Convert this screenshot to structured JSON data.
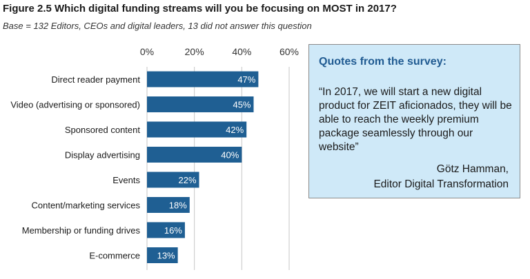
{
  "chart_data": {
    "type": "bar",
    "orientation": "horizontal",
    "title": "Figure 2.5 Which digital funding streams will you be focusing on MOST in 2017?",
    "subtitle": "Base = 132 Editors, CEOs and digital leaders, 13 did not answer this question",
    "categories": [
      "Direct reader payment",
      "Video (advertising or sponsored)",
      "Sponsored content",
      "Display advertising",
      "Events",
      "Content/marketing services",
      "Membership or funding drives",
      "E-commerce"
    ],
    "values": [
      47,
      45,
      42,
      40,
      22,
      18,
      16,
      13
    ],
    "value_labels": [
      "47%",
      "45%",
      "42%",
      "40%",
      "22%",
      "18%",
      "16%",
      "13%"
    ],
    "xlim": [
      0,
      60
    ],
    "ticks": [
      0,
      20,
      40,
      60
    ],
    "tick_labels": [
      "0%",
      "20%",
      "40%",
      "60%"
    ],
    "axis_position": "top",
    "grid": true,
    "xlabel": "",
    "ylabel": "",
    "bar_color": "#1f5f93",
    "grid_color": "#c6c6c6"
  },
  "quote_panel": {
    "heading": "Quotes from the survey:",
    "text": "“In 2017, we will start a new digital product for ZEIT aficionados, they will be able to reach the weekly premium package seamlessly through our website”",
    "author": "Götz Hamman,",
    "role": "Editor Digital Transformation",
    "background_color": "#cfe9f8",
    "heading_color": "#1f5a91"
  }
}
